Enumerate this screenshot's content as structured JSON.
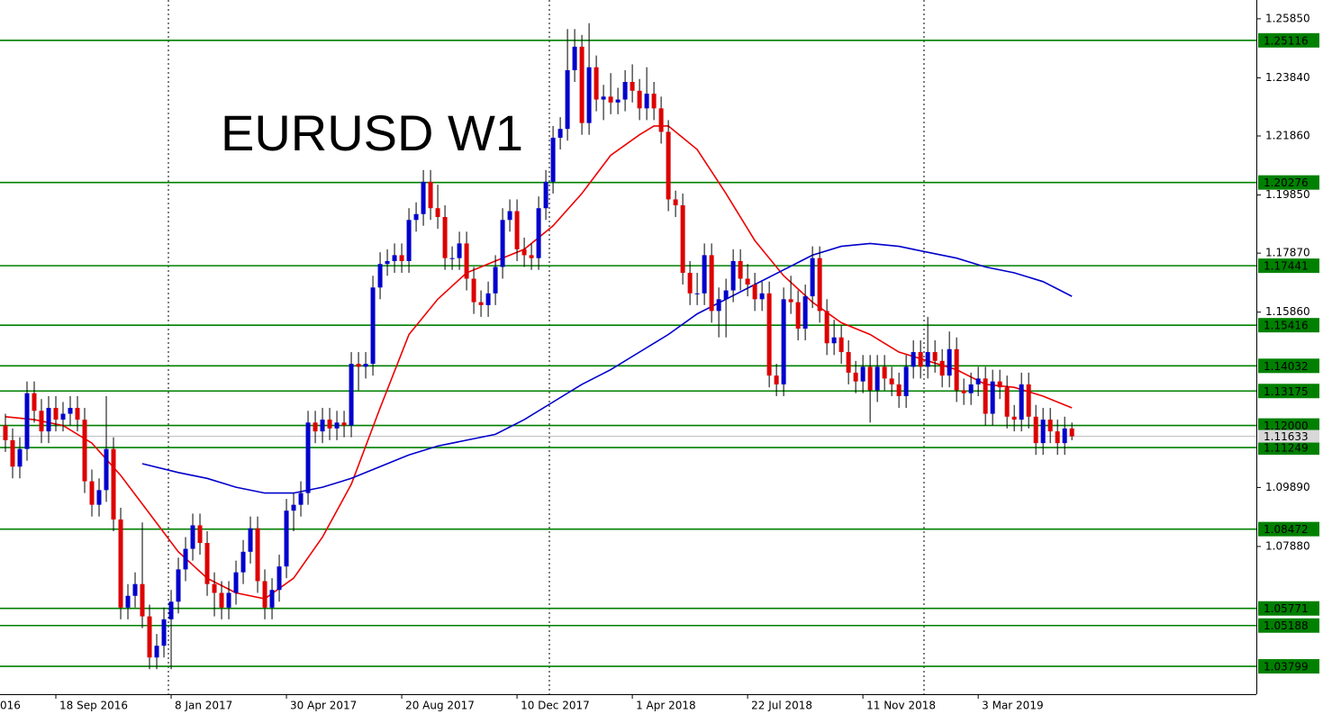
{
  "chart_data": {
    "type": "candlestick",
    "title": "EURUSD W1",
    "up_color": "#0000cc",
    "down_color": "#dd0000",
    "wick_color": "#000000",
    "level_color": "#008000",
    "xlim": [
      -0.75,
      173.6
    ],
    "ylim": [
      1.0285,
      1.2649
    ],
    "xticks": [
      {
        "value": -9,
        "label": "016"
      },
      {
        "value": 7,
        "label": "18 Sep 2016"
      },
      {
        "value": 23,
        "label": "8 Jan 2017"
      },
      {
        "value": 39,
        "label": "30 Apr 2017"
      },
      {
        "value": 55,
        "label": "20 Aug 2017"
      },
      {
        "value": 71,
        "label": "10 Dec 2017"
      },
      {
        "value": 87,
        "label": "1 Apr 2018"
      },
      {
        "value": 103,
        "label": "22 Jul 2018"
      },
      {
        "value": 119,
        "label": "11 Nov 2018"
      },
      {
        "value": 135,
        "label": "3 Mar 2019"
      }
    ],
    "yticks": [
      {
        "value": 1.2585,
        "label": "1.25850"
      },
      {
        "value": 1.2384,
        "label": "1.23840"
      },
      {
        "value": 1.2186,
        "label": "1.21860"
      },
      {
        "value": 1.1985,
        "label": "1.19850"
      },
      {
        "value": 1.1787,
        "label": "1.17870"
      },
      {
        "value": 1.1586,
        "label": "1.15860"
      },
      {
        "value": 1.0989,
        "label": "1.09890"
      },
      {
        "value": 1.0788,
        "label": "1.07880"
      }
    ],
    "levels": [
      {
        "value": 1.25116,
        "label": "1.25116"
      },
      {
        "value": 1.20276,
        "label": "1.20276"
      },
      {
        "value": 1.17441,
        "label": "1.17441"
      },
      {
        "value": 1.15416,
        "label": "1.15416"
      },
      {
        "value": 1.14032,
        "label": "1.14032"
      },
      {
        "value": 1.13175,
        "label": "1.13175"
      },
      {
        "value": 1.12,
        "label": "1.12000"
      },
      {
        "value": 1.11249,
        "label": "1.11249"
      },
      {
        "value": 1.08472,
        "label": "1.08472"
      },
      {
        "value": 1.05771,
        "label": "1.05771"
      },
      {
        "value": 1.05188,
        "label": "1.05188"
      },
      {
        "value": 1.03799,
        "label": "1.03799"
      }
    ],
    "last_price": {
      "value": 1.11633,
      "label": "1.11633"
    },
    "candles": [
      [
        1.12,
        1.124,
        1.111,
        1.115
      ],
      [
        1.115,
        1.119,
        1.102,
        1.106
      ],
      [
        1.106,
        1.116,
        1.102,
        1.112
      ],
      [
        1.112,
        1.135,
        1.108,
        1.131
      ],
      [
        1.131,
        1.135,
        1.121,
        1.125
      ],
      [
        1.125,
        1.129,
        1.114,
        1.118
      ],
      [
        1.118,
        1.13,
        1.114,
        1.126
      ],
      [
        1.126,
        1.13,
        1.118,
        1.122
      ],
      [
        1.122,
        1.128,
        1.118,
        1.124
      ],
      [
        1.124,
        1.13,
        1.12,
        1.126
      ],
      [
        1.126,
        1.13,
        1.118,
        1.122
      ],
      [
        1.122,
        1.126,
        1.097,
        1.101
      ],
      [
        1.101,
        1.105,
        1.089,
        1.093
      ],
      [
        1.093,
        1.102,
        1.089,
        1.098
      ],
      [
        1.098,
        1.13,
        1.094,
        1.112
      ],
      [
        1.112,
        1.116,
        1.084,
        1.088
      ],
      [
        1.088,
        1.092,
        1.054,
        1.058
      ],
      [
        1.058,
        1.066,
        1.054,
        1.062
      ],
      [
        1.062,
        1.07,
        1.058,
        1.066
      ],
      [
        1.066,
        1.087,
        1.051,
        1.055
      ],
      [
        1.055,
        1.059,
        1.037,
        1.041
      ],
      [
        1.041,
        1.049,
        1.037,
        1.045
      ],
      [
        1.045,
        1.058,
        1.041,
        1.054
      ],
      [
        1.054,
        1.064,
        1.037,
        1.06
      ],
      [
        1.06,
        1.075,
        1.056,
        1.071
      ],
      [
        1.071,
        1.082,
        1.067,
        1.078
      ],
      [
        1.078,
        1.09,
        1.074,
        1.086
      ],
      [
        1.086,
        1.09,
        1.076,
        1.08
      ],
      [
        1.08,
        1.084,
        1.062,
        1.066
      ],
      [
        1.066,
        1.07,
        1.055,
        1.063
      ],
      [
        1.063,
        1.067,
        1.054,
        1.058
      ],
      [
        1.058,
        1.067,
        1.054,
        1.063
      ],
      [
        1.063,
        1.074,
        1.059,
        1.07
      ],
      [
        1.07,
        1.081,
        1.066,
        1.077
      ],
      [
        1.077,
        1.089,
        1.073,
        1.085
      ],
      [
        1.085,
        1.089,
        1.063,
        1.067
      ],
      [
        1.067,
        1.071,
        1.054,
        1.058
      ],
      [
        1.058,
        1.068,
        1.054,
        1.064
      ],
      [
        1.064,
        1.076,
        1.06,
        1.072
      ],
      [
        1.072,
        1.095,
        1.068,
        1.091
      ],
      [
        1.091,
        1.097,
        1.084,
        1.093
      ],
      [
        1.093,
        1.101,
        1.089,
        1.097
      ],
      [
        1.097,
        1.125,
        1.093,
        1.121
      ],
      [
        1.121,
        1.125,
        1.114,
        1.118
      ],
      [
        1.118,
        1.126,
        1.114,
        1.122
      ],
      [
        1.122,
        1.126,
        1.115,
        1.119
      ],
      [
        1.119,
        1.125,
        1.115,
        1.121
      ],
      [
        1.121,
        1.125,
        1.116,
        1.12
      ],
      [
        1.12,
        1.145,
        1.116,
        1.141
      ],
      [
        1.141,
        1.145,
        1.132,
        1.14
      ],
      [
        1.14,
        1.145,
        1.136,
        1.141
      ],
      [
        1.141,
        1.171,
        1.137,
        1.167
      ],
      [
        1.167,
        1.179,
        1.163,
        1.175
      ],
      [
        1.175,
        1.18,
        1.171,
        1.176
      ],
      [
        1.176,
        1.182,
        1.172,
        1.178
      ],
      [
        1.178,
        1.182,
        1.172,
        1.176
      ],
      [
        1.176,
        1.194,
        1.172,
        1.19
      ],
      [
        1.19,
        1.196,
        1.186,
        1.192
      ],
      [
        1.192,
        1.207,
        1.188,
        1.203
      ],
      [
        1.203,
        1.207,
        1.19,
        1.194
      ],
      [
        1.194,
        1.202,
        1.187,
        1.191
      ],
      [
        1.191,
        1.195,
        1.173,
        1.177
      ],
      [
        1.177,
        1.181,
        1.173,
        1.177
      ],
      [
        1.177,
        1.186,
        1.173,
        1.182
      ],
      [
        1.182,
        1.186,
        1.166,
        1.17
      ],
      [
        1.17,
        1.174,
        1.158,
        1.162
      ],
      [
        1.162,
        1.166,
        1.157,
        1.161
      ],
      [
        1.161,
        1.169,
        1.157,
        1.165
      ],
      [
        1.165,
        1.178,
        1.161,
        1.174
      ],
      [
        1.174,
        1.194,
        1.17,
        1.19
      ],
      [
        1.19,
        1.197,
        1.186,
        1.193
      ],
      [
        1.193,
        1.197,
        1.176,
        1.18
      ],
      [
        1.18,
        1.184,
        1.174,
        1.178
      ],
      [
        1.178,
        1.182,
        1.173,
        1.177
      ],
      [
        1.177,
        1.198,
        1.173,
        1.194
      ],
      [
        1.194,
        1.207,
        1.19,
        1.203
      ],
      [
        1.203,
        1.222,
        1.199,
        1.218
      ],
      [
        1.218,
        1.225,
        1.214,
        1.221
      ],
      [
        1.221,
        1.255,
        1.217,
        1.241
      ],
      [
        1.241,
        1.255,
        1.237,
        1.249
      ],
      [
        1.249,
        1.253,
        1.219,
        1.223
      ],
      [
        1.223,
        1.257,
        1.219,
        1.242
      ],
      [
        1.242,
        1.246,
        1.227,
        1.231
      ],
      [
        1.231,
        1.236,
        1.224,
        1.232
      ],
      [
        1.232,
        1.24,
        1.226,
        1.23
      ],
      [
        1.23,
        1.235,
        1.226,
        1.231
      ],
      [
        1.231,
        1.241,
        1.227,
        1.237
      ],
      [
        1.237,
        1.243,
        1.23,
        1.234
      ],
      [
        1.234,
        1.238,
        1.224,
        1.228
      ],
      [
        1.228,
        1.242,
        1.224,
        1.233
      ],
      [
        1.233,
        1.237,
        1.224,
        1.228
      ],
      [
        1.228,
        1.232,
        1.216,
        1.22
      ],
      [
        1.22,
        1.224,
        1.193,
        1.197
      ],
      [
        1.197,
        1.2,
        1.191,
        1.195
      ],
      [
        1.195,
        1.199,
        1.168,
        1.172
      ],
      [
        1.172,
        1.176,
        1.161,
        1.165
      ],
      [
        1.165,
        1.172,
        1.161,
        1.165
      ],
      [
        1.165,
        1.182,
        1.161,
        1.178
      ],
      [
        1.178,
        1.182,
        1.155,
        1.159
      ],
      [
        1.159,
        1.167,
        1.15,
        1.163
      ],
      [
        1.163,
        1.17,
        1.15,
        1.166
      ],
      [
        1.166,
        1.18,
        1.162,
        1.176
      ],
      [
        1.176,
        1.18,
        1.166,
        1.17
      ],
      [
        1.17,
        1.175,
        1.164,
        1.168
      ],
      [
        1.168,
        1.172,
        1.159,
        1.163
      ],
      [
        1.163,
        1.169,
        1.159,
        1.165
      ],
      [
        1.165,
        1.169,
        1.133,
        1.137
      ],
      [
        1.137,
        1.141,
        1.13,
        1.134
      ],
      [
        1.134,
        1.167,
        1.13,
        1.163
      ],
      [
        1.163,
        1.171,
        1.158,
        1.162
      ],
      [
        1.162,
        1.166,
        1.149,
        1.153
      ],
      [
        1.153,
        1.168,
        1.149,
        1.164
      ],
      [
        1.164,
        1.181,
        1.16,
        1.177
      ],
      [
        1.177,
        1.181,
        1.155,
        1.159
      ],
      [
        1.159,
        1.163,
        1.144,
        1.148
      ],
      [
        1.148,
        1.156,
        1.144,
        1.15
      ],
      [
        1.15,
        1.154,
        1.141,
        1.145
      ],
      [
        1.145,
        1.149,
        1.134,
        1.138
      ],
      [
        1.138,
        1.142,
        1.131,
        1.135
      ],
      [
        1.135,
        1.144,
        1.131,
        1.14
      ],
      [
        1.14,
        1.144,
        1.121,
        1.132
      ],
      [
        1.132,
        1.144,
        1.128,
        1.14
      ],
      [
        1.14,
        1.144,
        1.132,
        1.136
      ],
      [
        1.136,
        1.14,
        1.13,
        1.134
      ],
      [
        1.134,
        1.138,
        1.126,
        1.13
      ],
      [
        1.13,
        1.144,
        1.126,
        1.14
      ],
      [
        1.14,
        1.149,
        1.136,
        1.145
      ],
      [
        1.145,
        1.149,
        1.136,
        1.14
      ],
      [
        1.14,
        1.157,
        1.136,
        1.145
      ],
      [
        1.145,
        1.149,
        1.138,
        1.142
      ],
      [
        1.142,
        1.146,
        1.133,
        1.137
      ],
      [
        1.137,
        1.152,
        1.133,
        1.146
      ],
      [
        1.146,
        1.15,
        1.128,
        1.132
      ],
      [
        1.132,
        1.136,
        1.127,
        1.131
      ],
      [
        1.131,
        1.138,
        1.127,
        1.134
      ],
      [
        1.134,
        1.14,
        1.13,
        1.136
      ],
      [
        1.136,
        1.14,
        1.12,
        1.124
      ],
      [
        1.124,
        1.139,
        1.12,
        1.135
      ],
      [
        1.135,
        1.139,
        1.129,
        1.133
      ],
      [
        1.133,
        1.137,
        1.119,
        1.123
      ],
      [
        1.123,
        1.127,
        1.118,
        1.122
      ],
      [
        1.122,
        1.138,
        1.118,
        1.134
      ],
      [
        1.134,
        1.138,
        1.119,
        1.123
      ],
      [
        1.123,
        1.127,
        1.11,
        1.114
      ],
      [
        1.114,
        1.126,
        1.11,
        1.122
      ],
      [
        1.122,
        1.126,
        1.114,
        1.118
      ],
      [
        1.118,
        1.122,
        1.11,
        1.114
      ],
      [
        1.114,
        1.123,
        1.11,
        1.119
      ],
      [
        1.119,
        1.121,
        1.115,
        1.1163
      ]
    ],
    "moving_averages": [
      {
        "color": "#ee0000",
        "x": [
          0,
          4,
          8,
          12,
          16,
          20,
          24,
          28,
          32,
          36,
          40,
          44,
          48,
          52,
          56,
          60,
          64,
          68,
          72,
          76,
          80,
          84,
          88,
          90,
          92,
          96,
          100,
          104,
          108,
          112,
          116,
          120,
          124,
          128,
          132,
          136,
          140,
          144,
          148
        ],
        "values": [
          1.123,
          1.122,
          1.12,
          1.114,
          1.103,
          1.09,
          1.077,
          1.068,
          1.063,
          1.061,
          1.068,
          1.082,
          1.1,
          1.126,
          1.151,
          1.163,
          1.172,
          1.176,
          1.18,
          1.188,
          1.199,
          1.212,
          1.219,
          1.222,
          1.222,
          1.214,
          1.199,
          1.183,
          1.171,
          1.162,
          1.155,
          1.151,
          1.145,
          1.142,
          1.139,
          1.134,
          1.133,
          1.13,
          1.126
        ]
      },
      {
        "color": "#0000cc",
        "x": [
          19,
          24,
          28,
          32,
          36,
          40,
          44,
          48,
          52,
          56,
          60,
          64,
          68,
          72,
          76,
          80,
          84,
          88,
          92,
          96,
          100,
          104,
          108,
          112,
          116,
          120,
          124,
          128,
          132,
          136,
          140,
          144,
          148
        ],
        "values": [
          1.107,
          1.104,
          1.102,
          1.099,
          1.097,
          1.097,
          1.099,
          1.102,
          1.106,
          1.11,
          1.113,
          1.115,
          1.117,
          1.122,
          1.128,
          1.134,
          1.139,
          1.145,
          1.151,
          1.158,
          1.163,
          1.168,
          1.173,
          1.178,
          1.181,
          1.182,
          1.181,
          1.179,
          1.177,
          1.174,
          1.172,
          1.169,
          1.164
        ]
      }
    ]
  }
}
